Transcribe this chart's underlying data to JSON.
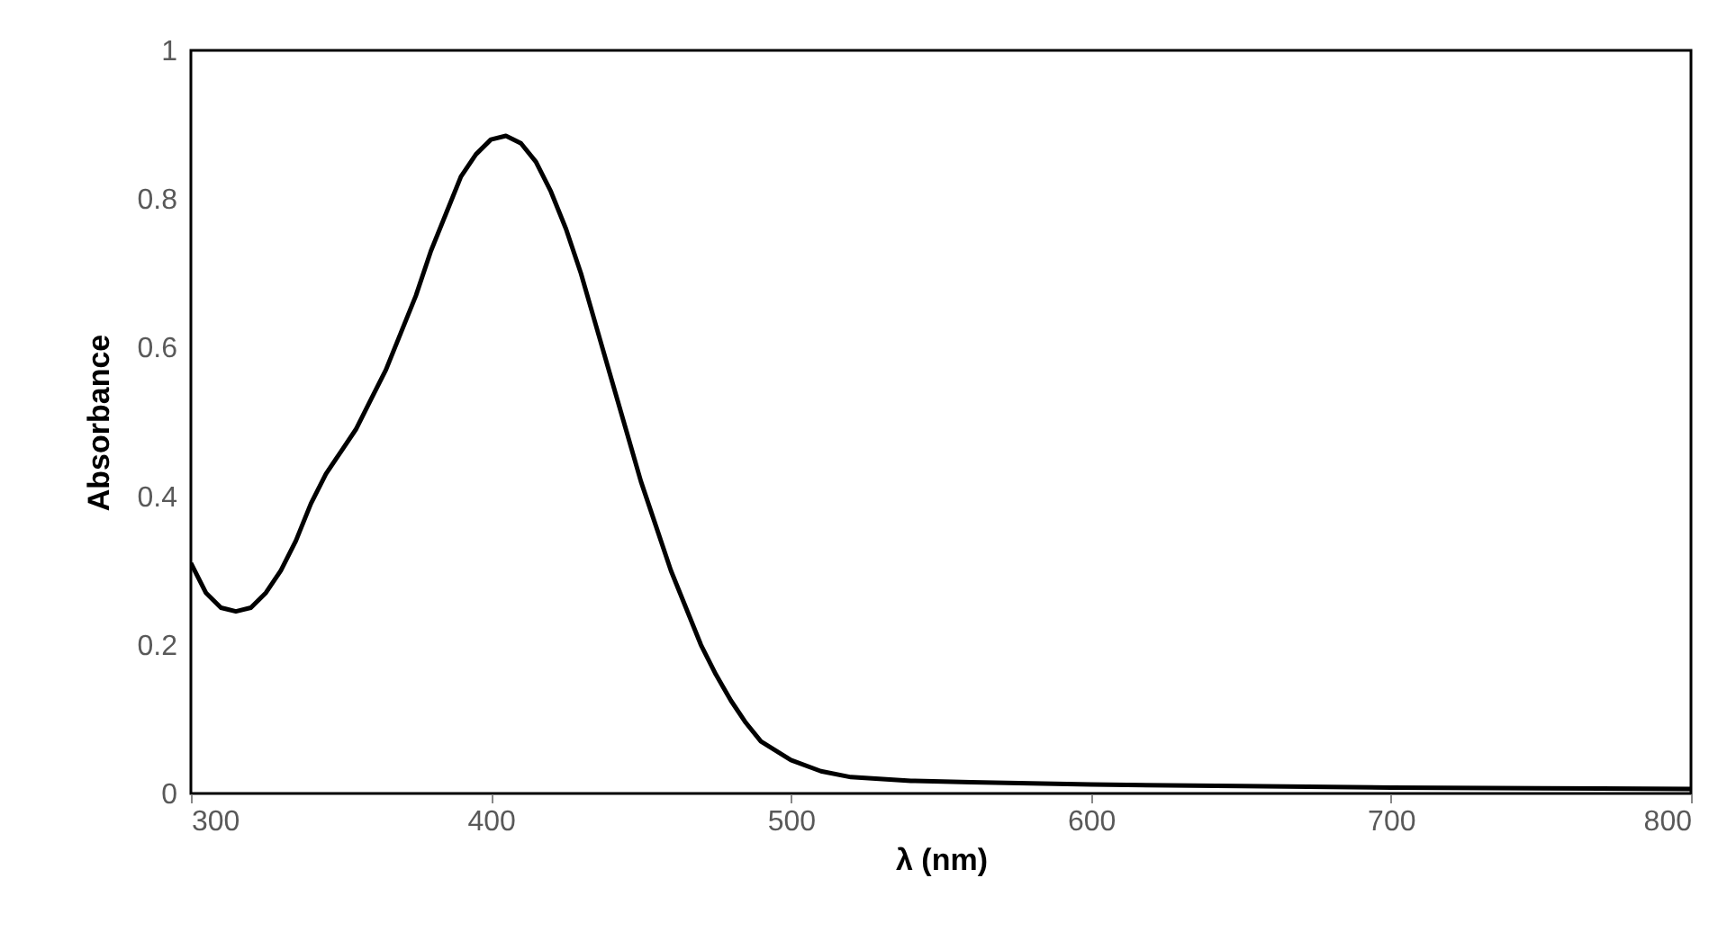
{
  "chart_data": {
    "type": "line",
    "xlabel": "λ (nm)",
    "ylabel": "Absorbance",
    "xlim": [
      300,
      800
    ],
    "xticks": [
      300,
      400,
      500,
      600,
      700,
      800
    ],
    "ylim": [
      0,
      1
    ],
    "yticks": [
      0,
      0.2,
      0.4,
      0.6,
      0.8,
      1
    ],
    "grid": false,
    "marker": "none",
    "line_style": "solid",
    "series": [
      {
        "color": "#000000",
        "x": [
          300,
          305,
          310,
          315,
          320,
          325,
          330,
          335,
          340,
          345,
          350,
          355,
          360,
          365,
          370,
          375,
          380,
          385,
          390,
          395,
          400,
          405,
          410,
          415,
          420,
          425,
          430,
          435,
          440,
          445,
          450,
          455,
          460,
          465,
          470,
          475,
          480,
          485,
          490,
          500,
          510,
          520,
          540,
          560,
          600,
          650,
          700,
          750,
          800
        ],
        "values": [
          0.31,
          0.27,
          0.25,
          0.245,
          0.25,
          0.27,
          0.3,
          0.34,
          0.39,
          0.43,
          0.46,
          0.49,
          0.53,
          0.57,
          0.62,
          0.67,
          0.73,
          0.78,
          0.83,
          0.86,
          0.88,
          0.885,
          0.875,
          0.85,
          0.81,
          0.76,
          0.7,
          0.63,
          0.56,
          0.49,
          0.42,
          0.36,
          0.3,
          0.25,
          0.2,
          0.16,
          0.125,
          0.095,
          0.07,
          0.045,
          0.03,
          0.022,
          0.017,
          0.015,
          0.012,
          0.01,
          0.008,
          0.007,
          0.006
        ]
      }
    ]
  }
}
